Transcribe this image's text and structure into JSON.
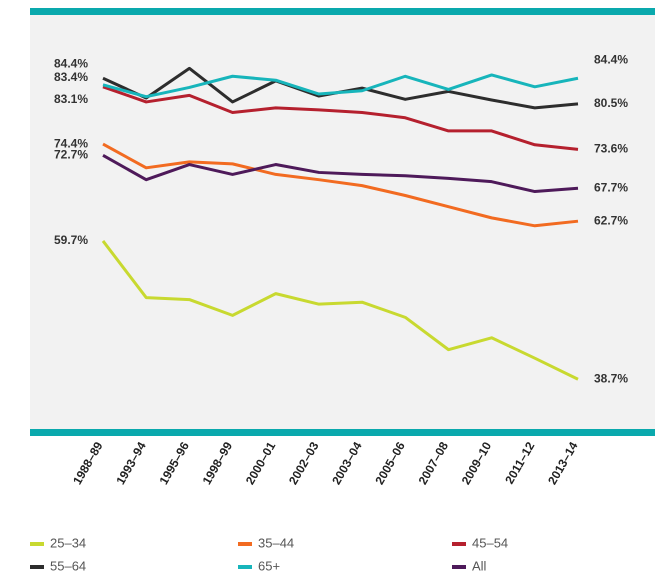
{
  "chart_data": {
    "type": "line",
    "categories": [
      "1988–89",
      "1993–94",
      "1995–96",
      "1998–99",
      "2000–01",
      "2002–03",
      "2003–04",
      "2005–06",
      "2007–08",
      "2009–10",
      "2011–12",
      "2013–14"
    ],
    "ylim": [
      31,
      94
    ],
    "series": [
      {
        "name": "25–34",
        "color": "#c8d930",
        "values": [
          59.7,
          51.1,
          50.8,
          48.4,
          51.7,
          50.1,
          50.4,
          48.1,
          43.2,
          45.0,
          41.9,
          38.7
        ],
        "value_labels": [
          "59.7%",
          null,
          null,
          null,
          null,
          null,
          null,
          null,
          null,
          null,
          null,
          "38.7%"
        ]
      },
      {
        "name": "35–44",
        "color": "#f26b21",
        "values": [
          74.4,
          70.8,
          71.7,
          71.4,
          69.8,
          69.0,
          68.1,
          66.6,
          64.9,
          63.2,
          62.0,
          62.7
        ],
        "value_labels": [
          "74.4%",
          null,
          null,
          null,
          null,
          null,
          null,
          null,
          null,
          null,
          null,
          "62.7%"
        ]
      },
      {
        "name": "45–54",
        "color": "#b5202e",
        "values": [
          83.1,
          80.8,
          81.8,
          79.2,
          79.9,
          79.6,
          79.2,
          78.4,
          76.4,
          76.4,
          74.3,
          73.6
        ],
        "value_labels": [
          "83.1%",
          null,
          null,
          null,
          null,
          null,
          null,
          null,
          null,
          null,
          null,
          "73.6%"
        ]
      },
      {
        "name": "55–64",
        "color": "#2d2d2d",
        "values": [
          84.4,
          81.4,
          85.9,
          80.8,
          84.0,
          81.7,
          82.9,
          81.2,
          82.4,
          81.1,
          79.9,
          80.5
        ],
        "value_labels": [
          "84.4%",
          null,
          null,
          null,
          null,
          null,
          null,
          null,
          null,
          null,
          null,
          "80.5%"
        ]
      },
      {
        "name": "65+",
        "color": "#17b5bb",
        "values": [
          83.4,
          81.6,
          83.0,
          84.7,
          84.1,
          82.0,
          82.5,
          84.7,
          82.7,
          84.9,
          83.1,
          84.4
        ],
        "value_labels": [
          "83.4%",
          null,
          null,
          null,
          null,
          null,
          null,
          null,
          null,
          null,
          null,
          "84.4%"
        ]
      },
      {
        "name": "All",
        "color": "#4e1a5a",
        "values": [
          72.7,
          69.0,
          71.3,
          69.8,
          71.3,
          70.1,
          69.8,
          69.6,
          69.2,
          68.7,
          67.2,
          67.7
        ],
        "value_labels": [
          "72.7%",
          null,
          null,
          null,
          null,
          null,
          null,
          null,
          null,
          null,
          null,
          "67.7%"
        ]
      }
    ]
  }
}
